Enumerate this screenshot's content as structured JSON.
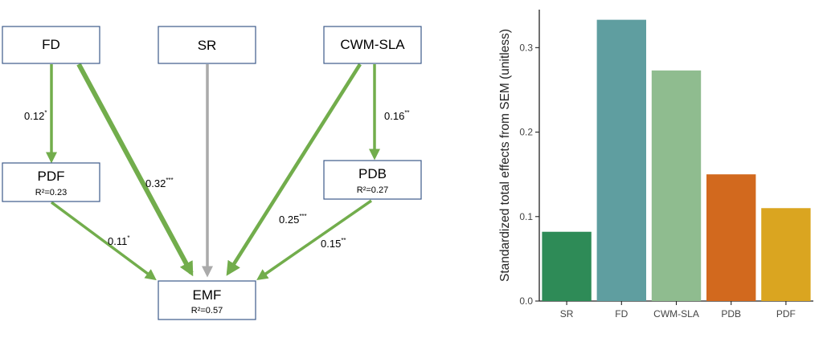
{
  "sem_diagram": {
    "nodes": {
      "fd": {
        "label": "FD"
      },
      "sr": {
        "label": "SR"
      },
      "cwm": {
        "label": "CWM-SLA"
      },
      "pdf": {
        "label": "PDF",
        "r2": "R²=0.23"
      },
      "pdb": {
        "label": "PDB",
        "r2": "R²=0.27"
      },
      "emf": {
        "label": "EMF",
        "r2": "R²=0.57"
      }
    },
    "paths": [
      {
        "from": "FD",
        "to": "PDF",
        "coef": "0.12",
        "sig": "*",
        "color": "#72ad4c"
      },
      {
        "from": "FD",
        "to": "EMF",
        "coef": "0.32",
        "sig": "***",
        "color": "#72ad4c"
      },
      {
        "from": "SR",
        "to": "EMF",
        "coef": "",
        "sig": "",
        "color": "#aaaaaa"
      },
      {
        "from": "CWM-SLA",
        "to": "EMF",
        "coef": "0.25",
        "sig": "***",
        "color": "#72ad4c"
      },
      {
        "from": "CWM-SLA",
        "to": "PDB",
        "coef": "0.16",
        "sig": "**",
        "color": "#72ad4c"
      },
      {
        "from": "PDF",
        "to": "EMF",
        "coef": "0.11",
        "sig": "*",
        "color": "#72ad4c"
      },
      {
        "from": "PDB",
        "to": "EMF",
        "coef": "0.15",
        "sig": "**",
        "color": "#72ad4c"
      }
    ]
  },
  "chart_data": {
    "type": "bar",
    "categories": [
      "SR",
      "FD",
      "CWM-SLA",
      "PDB",
      "PDF"
    ],
    "values": [
      0.082,
      0.333,
      0.273,
      0.15,
      0.11
    ],
    "colors": [
      "#2e8b57",
      "#5f9ea0",
      "#8fbc8f",
      "#d2691e",
      "#daa520"
    ],
    "title": "",
    "xlabel": "",
    "ylabel": "Standardized total effects from SEM (unitless)",
    "ylim": [
      0,
      0.345
    ],
    "yticks": [
      "0.0",
      "0.1",
      "0.2",
      "0.3"
    ],
    "grid": false
  }
}
